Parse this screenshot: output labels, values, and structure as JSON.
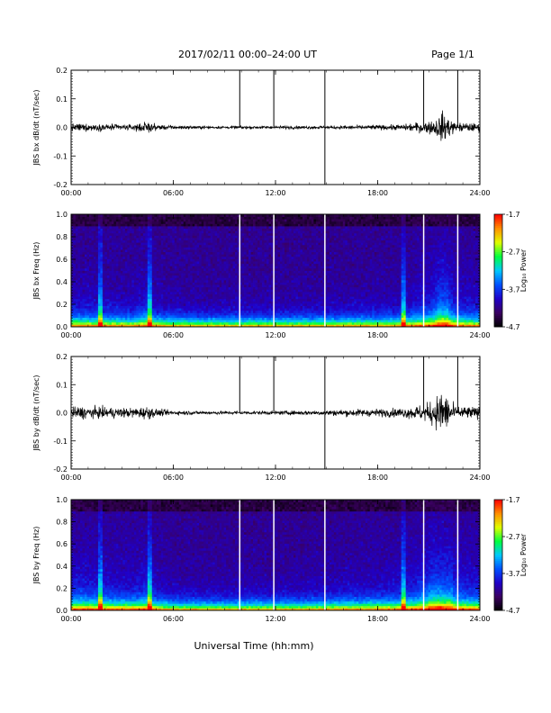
{
  "header": {
    "title": "2017/02/11  00:00–24:00 UT",
    "page": "Page 1/1"
  },
  "footer": {
    "xlabel": "Universal Time (hh:mm)"
  },
  "colors": {
    "trace": "#000000",
    "colormap": [
      "#000000",
      "#3a0060",
      "#2000c8",
      "#0050ff",
      "#00c8ff",
      "#00ff40",
      "#e0ff00",
      "#ff9000",
      "#ff0000"
    ]
  },
  "chart_data": [
    {
      "type": "line",
      "ylabel": "JBS bx dB/dt (nT/sec)",
      "xlim": [
        0,
        24
      ],
      "ylim": [
        -0.2,
        0.2
      ],
      "xticks": [
        "00:00",
        "06:00",
        "12:00",
        "18:00",
        "24:00"
      ],
      "yticks": [
        "-0.2",
        "-0.1",
        "0.0",
        "0.1",
        "0.2"
      ],
      "data_gaps_hours": [
        9.9,
        11.9,
        14.9,
        20.7,
        22.7
      ],
      "envelope": {
        "x": [
          0,
          0.5,
          1.5,
          2.5,
          3.5,
          4.5,
          5.0,
          6,
          8,
          10,
          12,
          14,
          16,
          17.5,
          18.5,
          19.5,
          20.2,
          20.9,
          21.4,
          21.8,
          22.1,
          22.5,
          23,
          24
        ],
        "amplitude": [
          0.02,
          0.02,
          0.018,
          0.017,
          0.014,
          0.03,
          0.015,
          0.01,
          0.007,
          0.008,
          0.008,
          0.008,
          0.01,
          0.012,
          0.013,
          0.015,
          0.025,
          0.03,
          0.045,
          0.08,
          0.06,
          0.03,
          0.025,
          0.02
        ]
      }
    },
    {
      "type": "heatmap",
      "ylabel": "JBS bx Freq (Hz)",
      "xlim": [
        0,
        24
      ],
      "ylim": [
        0,
        1.0
      ],
      "xticks": [
        "00:00",
        "06:00",
        "12:00",
        "18:00",
        "24:00"
      ],
      "yticks": [
        "0.0",
        "0.2",
        "0.4",
        "0.6",
        "0.8",
        "1.0"
      ],
      "data_gaps_hours": [
        9.9,
        11.9,
        14.9,
        20.7,
        22.7
      ],
      "colorbar": {
        "label": "Log₁₀ Power",
        "min": -4.7,
        "max": -1.7,
        "ticks": [
          "-1.7",
          "-2.7",
          "-3.7",
          "-4.7"
        ]
      }
    },
    {
      "type": "line",
      "ylabel": "JBS by dB/dt (nT/sec)",
      "xlim": [
        0,
        24
      ],
      "ylim": [
        -0.2,
        0.2
      ],
      "xticks": [
        "00:00",
        "06:00",
        "12:00",
        "18:00",
        "24:00"
      ],
      "yticks": [
        "-0.2",
        "-0.1",
        "0.0",
        "0.1",
        "0.2"
      ],
      "data_gaps_hours": [
        9.9,
        11.9,
        14.9,
        20.7,
        22.7
      ],
      "envelope": {
        "x": [
          0,
          0.5,
          1.5,
          2.5,
          3.5,
          4.5,
          5.0,
          6,
          8,
          10,
          12,
          14,
          16,
          17.5,
          18.5,
          19.5,
          20.2,
          20.9,
          21.4,
          21.8,
          22.1,
          22.5,
          23,
          24
        ],
        "amplitude": [
          0.03,
          0.035,
          0.03,
          0.028,
          0.025,
          0.035,
          0.02,
          0.012,
          0.009,
          0.01,
          0.01,
          0.012,
          0.018,
          0.02,
          0.022,
          0.025,
          0.035,
          0.05,
          0.08,
          0.13,
          0.09,
          0.04,
          0.035,
          0.03
        ]
      }
    },
    {
      "type": "heatmap",
      "ylabel": "JBS by Freq (Hz)",
      "xlim": [
        0,
        24
      ],
      "ylim": [
        0,
        1.0
      ],
      "xticks": [
        "00:00",
        "06:00",
        "12:00",
        "18:00",
        "24:00"
      ],
      "yticks": [
        "0.0",
        "0.2",
        "0.4",
        "0.6",
        "0.8",
        "1.0"
      ],
      "data_gaps_hours": [
        9.9,
        11.9,
        14.9,
        20.7,
        22.7
      ],
      "colorbar": {
        "label": "Log₁₀ Power",
        "min": -4.7,
        "max": -1.7,
        "ticks": [
          "-1.7",
          "-2.7",
          "-3.7",
          "-4.7"
        ]
      }
    }
  ]
}
